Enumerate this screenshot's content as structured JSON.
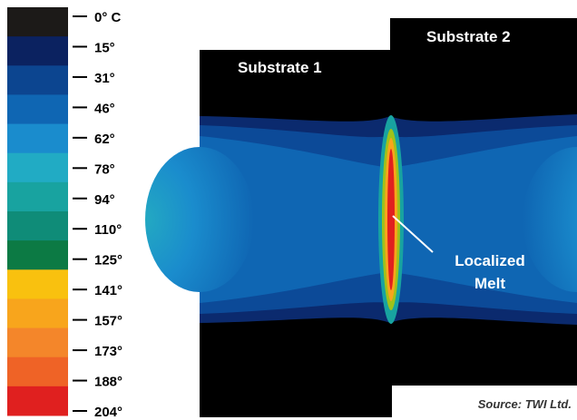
{
  "scale": {
    "labels": [
      "0° C",
      "15°",
      "31°",
      "46°",
      "62°",
      "78°",
      "94°",
      "110°",
      "125°",
      "141°",
      "157°",
      "173°",
      "188°",
      "204°"
    ],
    "colors": [
      "#1c1a18",
      "#0b2260",
      "#0c4590",
      "#0f66b3",
      "#1a8ccd",
      "#21abc4",
      "#18a3a0",
      "#0f8c78",
      "#0c7a44",
      "#f9c10f",
      "#f8a51c",
      "#f4862a",
      "#ef6326",
      "#e0201f"
    ]
  },
  "image": {
    "substrate_1": "Substrate 1",
    "substrate_2": "Substrate 2",
    "melt_label": [
      "Localized",
      "Melt"
    ],
    "source": "Source: TWI Ltd."
  }
}
